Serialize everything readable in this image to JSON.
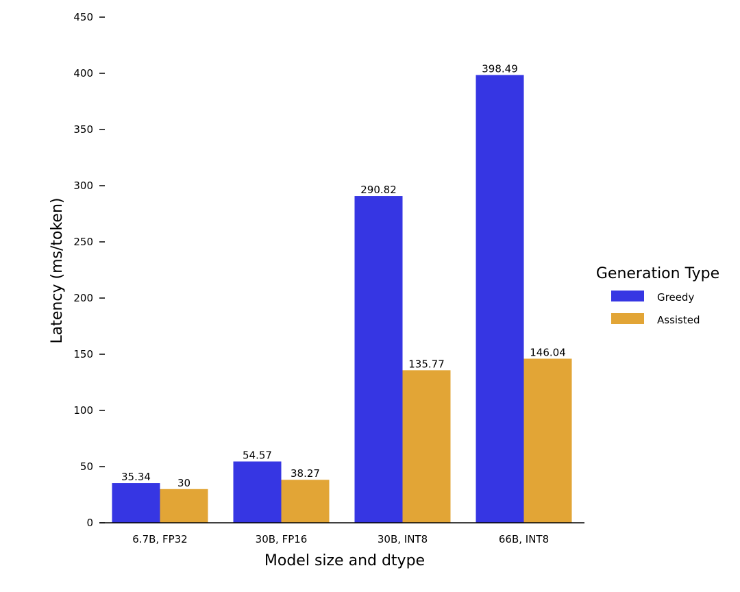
{
  "chart_data": {
    "type": "bar",
    "title": "",
    "xlabel": "Model size and dtype",
    "ylabel": "Latency (ms/token)",
    "categories": [
      "6.7B, FP32",
      "30B, FP16",
      "30B, INT8",
      "66B, INT8"
    ],
    "series": [
      {
        "name": "Greedy",
        "color": "#3636e3",
        "values": [
          35.34,
          54.57,
          290.82,
          398.49
        ],
        "labels": [
          "35.34",
          "54.57",
          "290.82",
          "398.49"
        ]
      },
      {
        "name": "Assisted",
        "color": "#e2a536",
        "values": [
          30,
          38.27,
          135.77,
          146.04
        ],
        "labels": [
          "30",
          "38.27",
          "135.77",
          "146.04"
        ]
      }
    ],
    "ylim": [
      0,
      450
    ],
    "yticks": [
      0,
      50,
      100,
      150,
      200,
      250,
      300,
      350,
      400,
      450
    ],
    "ytick_labels": [
      "0",
      "50",
      "100",
      "150",
      "200",
      "250",
      "300",
      "350",
      "400",
      "450"
    ],
    "grid": false,
    "legend": {
      "title": "Generation Type",
      "placement": "right"
    }
  }
}
